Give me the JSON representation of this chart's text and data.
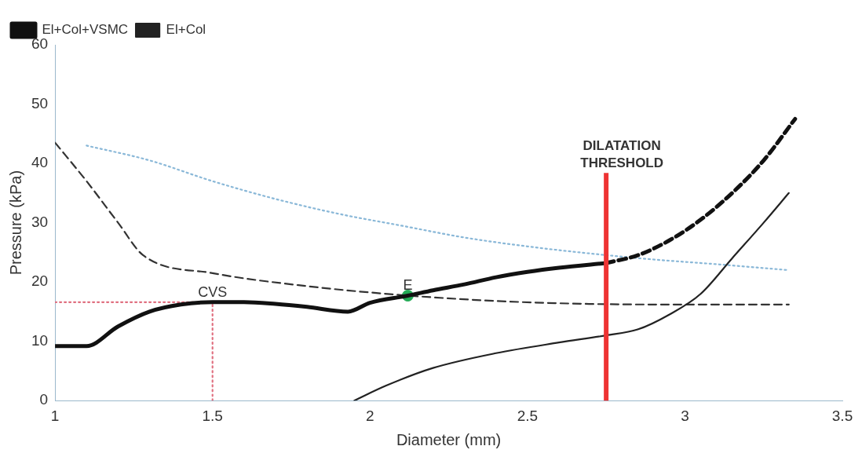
{
  "chart_data": {
    "type": "line",
    "xlabel": "Diameter (mm)",
    "ylabel": "Pressure (kPa)",
    "xlim": [
      1,
      3.5
    ],
    "xticks": [
      1,
      1.5,
      2,
      2.5,
      3,
      3.5
    ],
    "ylim": [
      0,
      60
    ],
    "yticks": [
      0,
      10,
      20,
      30,
      40,
      50,
      60
    ],
    "grid": false,
    "legend": "top left",
    "marker": "none",
    "series": [
      {
        "name": "El+Col+VSMC",
        "color": "#111111",
        "line_style": "solid",
        "x": [
          1,
          1.1,
          1.2,
          1.3,
          1.4,
          1.5,
          1.6,
          1.7,
          1.8,
          1.93,
          2.0,
          2.12,
          2.2,
          2.3,
          2.4,
          2.5,
          2.6,
          2.75
        ],
        "values": [
          9.2,
          9.2,
          12.5,
          15,
          16.2,
          16.6,
          16.6,
          16.3,
          15.8,
          15,
          16.5,
          17.7,
          18.6,
          19.6,
          20.8,
          21.7,
          22.4,
          23.2
        ]
      },
      {
        "color": "#111111",
        "line_style": "dashed",
        "x": [
          2.75,
          2.85,
          2.95,
          3.05,
          3.15,
          3.25,
          3.35
        ],
        "values": [
          23.2,
          24.5,
          27,
          30.5,
          35,
          40.5,
          47.5
        ]
      },
      {
        "name": "El+Col",
        "color": "#222222",
        "line_style": "solid",
        "x": [
          1.95,
          2.05,
          2.2,
          2.4,
          2.6,
          2.75,
          2.85,
          2.95,
          3.05,
          3.15,
          3.25,
          3.33
        ],
        "values": [
          0,
          2.5,
          5.5,
          8,
          9.8,
          11,
          12,
          14.5,
          18,
          24,
          30,
          35
        ]
      },
      {
        "color": "#8ab8d8",
        "line_style": "dotted",
        "x": [
          1.1,
          1.3,
          1.5,
          1.7,
          1.9,
          2.1,
          2.3,
          2.5,
          2.7,
          2.9,
          3.1,
          3.33
        ],
        "values": [
          43,
          40.5,
          37,
          34,
          31.5,
          29.5,
          27.5,
          26,
          24.8,
          23.8,
          23,
          22
        ]
      },
      {
        "color": "#333333",
        "line_style": "dashed",
        "x": [
          1,
          1.1,
          1.2,
          1.28,
          1.5,
          1.8,
          2.1,
          2.4,
          2.7,
          3.0,
          3.33
        ],
        "values": [
          43.5,
          37,
          30,
          24.5,
          21.5,
          19.3,
          17.8,
          16.8,
          16.3,
          16.2,
          16.2
        ]
      },
      {
        "color": "#e07080",
        "line_style": "dotted",
        "x": [
          1,
          1.5,
          1.5
        ],
        "values": [
          16.6,
          16.6,
          0
        ]
      },
      {
        "type": "scatter",
        "marker": "circle",
        "color": "#22aa55",
        "x": [
          2.12
        ],
        "values": [
          17.7
        ]
      }
    ],
    "ref_lines": [
      {
        "axis": "x",
        "value": 2.75,
        "label": "DILATATION THRESHOLD",
        "color": "#ee3333"
      }
    ],
    "annotations": [
      {
        "text": "CVS",
        "x": 1.5,
        "y": 16.6
      },
      {
        "text": "E",
        "x": 2.12,
        "y": 17.7
      }
    ]
  }
}
